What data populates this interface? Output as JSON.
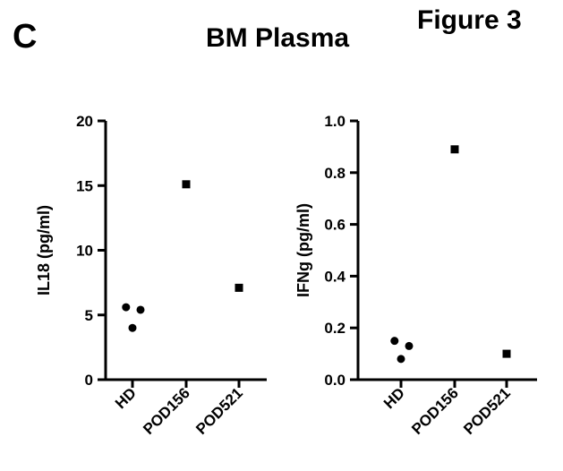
{
  "panel_letter": "C",
  "figure_label": "Figure 3",
  "title": "BM Plasma",
  "chart_data": [
    {
      "type": "scatter",
      "ylabel": "IL18 (pg/ml)",
      "categories": [
        "HD",
        "POD156",
        "POD521"
      ],
      "ylim": [
        0,
        20
      ],
      "yticks": [
        "0",
        "5",
        "10",
        "15",
        "20"
      ],
      "yticks_values": [
        0,
        5,
        10,
        15,
        20
      ],
      "points": [
        {
          "category": "HD",
          "offset": -0.12,
          "y": 5.6,
          "marker": "circle"
        },
        {
          "category": "HD",
          "offset": 0.0,
          "y": 4.0,
          "marker": "circle"
        },
        {
          "category": "HD",
          "offset": 0.15,
          "y": 5.4,
          "marker": "circle"
        },
        {
          "category": "POD156",
          "offset": 0.0,
          "y": 15.1,
          "marker": "square"
        },
        {
          "category": "POD521",
          "offset": 0.0,
          "y": 7.1,
          "marker": "square"
        }
      ]
    },
    {
      "type": "scatter",
      "ylabel": "IFNg (pg/ml)",
      "categories": [
        "HD",
        "POD156",
        "POD521"
      ],
      "ylim": [
        0,
        1.0
      ],
      "yticks": [
        "0.0",
        "0.2",
        "0.4",
        "0.6",
        "0.8",
        "1.0"
      ],
      "yticks_values": [
        0,
        0.2,
        0.4,
        0.6,
        0.8,
        1.0
      ],
      "points": [
        {
          "category": "HD",
          "offset": -0.12,
          "y": 0.15,
          "marker": "circle"
        },
        {
          "category": "HD",
          "offset": 0.0,
          "y": 0.08,
          "marker": "circle"
        },
        {
          "category": "HD",
          "offset": 0.15,
          "y": 0.13,
          "marker": "circle"
        },
        {
          "category": "POD156",
          "offset": 0.0,
          "y": 0.89,
          "marker": "square"
        },
        {
          "category": "POD521",
          "offset": 0.0,
          "y": 0.1,
          "marker": "square"
        }
      ]
    }
  ]
}
